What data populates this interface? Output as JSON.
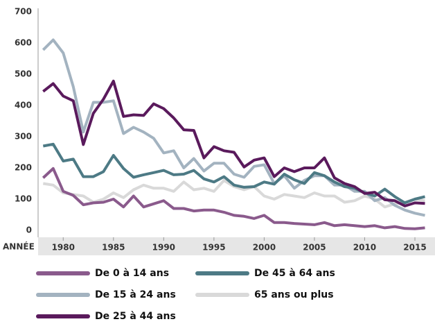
{
  "chart_data": {
    "type": "line",
    "x_label": "ANNÉE",
    "x": [
      1978,
      1979,
      1980,
      1981,
      1982,
      1983,
      1984,
      1985,
      1986,
      1987,
      1988,
      1989,
      1990,
      1991,
      1992,
      1993,
      1994,
      1995,
      1996,
      1997,
      1998,
      1999,
      2000,
      2001,
      2002,
      2003,
      2004,
      2005,
      2006,
      2007,
      2008,
      2009,
      2010,
      2011,
      2012,
      2013,
      2014,
      2015,
      2016
    ],
    "xlim": [
      1977.5,
      2017
    ],
    "xticks": [
      1980,
      1985,
      1990,
      1995,
      2000,
      2005,
      2010,
      2015
    ],
    "ylim": [
      0,
      700
    ],
    "yticks": [
      0,
      100,
      200,
      300,
      400,
      500,
      600,
      700
    ],
    "grid": false,
    "series": [
      {
        "name": "De 0 à 14 ans",
        "color": "#8a5a8c",
        "values": [
          168,
          198,
          125,
          112,
          82,
          88,
          90,
          100,
          75,
          110,
          75,
          85,
          95,
          70,
          70,
          62,
          65,
          65,
          58,
          48,
          45,
          38,
          48,
          25,
          25,
          22,
          20,
          18,
          25,
          15,
          18,
          15,
          12,
          15,
          8,
          12,
          6,
          5,
          8
        ]
      },
      {
        "name": "De 15 à 24 ans",
        "color": "#a3b3c0",
        "values": [
          578,
          610,
          568,
          460,
          315,
          410,
          410,
          415,
          310,
          330,
          315,
          295,
          248,
          255,
          200,
          230,
          190,
          215,
          215,
          180,
          170,
          205,
          210,
          150,
          175,
          135,
          160,
          175,
          175,
          145,
          145,
          125,
          125,
          95,
          105,
          80,
          65,
          55,
          48
        ]
      },
      {
        "name": "De 25 à 44 ans",
        "color": "#5a1a5c",
        "values": [
          445,
          470,
          430,
          415,
          275,
          375,
          420,
          478,
          365,
          370,
          368,
          405,
          390,
          360,
          322,
          320,
          232,
          268,
          255,
          250,
          203,
          225,
          232,
          172,
          200,
          188,
          200,
          200,
          232,
          168,
          150,
          140,
          118,
          122,
          98,
          95,
          78,
          88,
          86
        ]
      },
      {
        "name": "De 45 à 64 ans",
        "color": "#4d7a85",
        "values": [
          270,
          276,
          222,
          228,
          172,
          172,
          188,
          240,
          198,
          170,
          178,
          185,
          192,
          178,
          180,
          192,
          165,
          155,
          172,
          145,
          138,
          140,
          155,
          148,
          180,
          162,
          150,
          185,
          175,
          155,
          140,
          135,
          120,
          110,
          132,
          108,
          88,
          100,
          108
        ]
      },
      {
        "name": "65 ans ou plus",
        "color": "#d9d9d9",
        "values": [
          150,
          145,
          120,
          115,
          110,
          90,
          100,
          120,
          105,
          130,
          145,
          135,
          135,
          125,
          155,
          130,
          135,
          125,
          160,
          140,
          130,
          140,
          110,
          100,
          115,
          110,
          105,
          120,
          110,
          110,
          90,
          95,
          110,
          100,
          75,
          85,
          90,
          100,
          95
        ]
      }
    ]
  }
}
